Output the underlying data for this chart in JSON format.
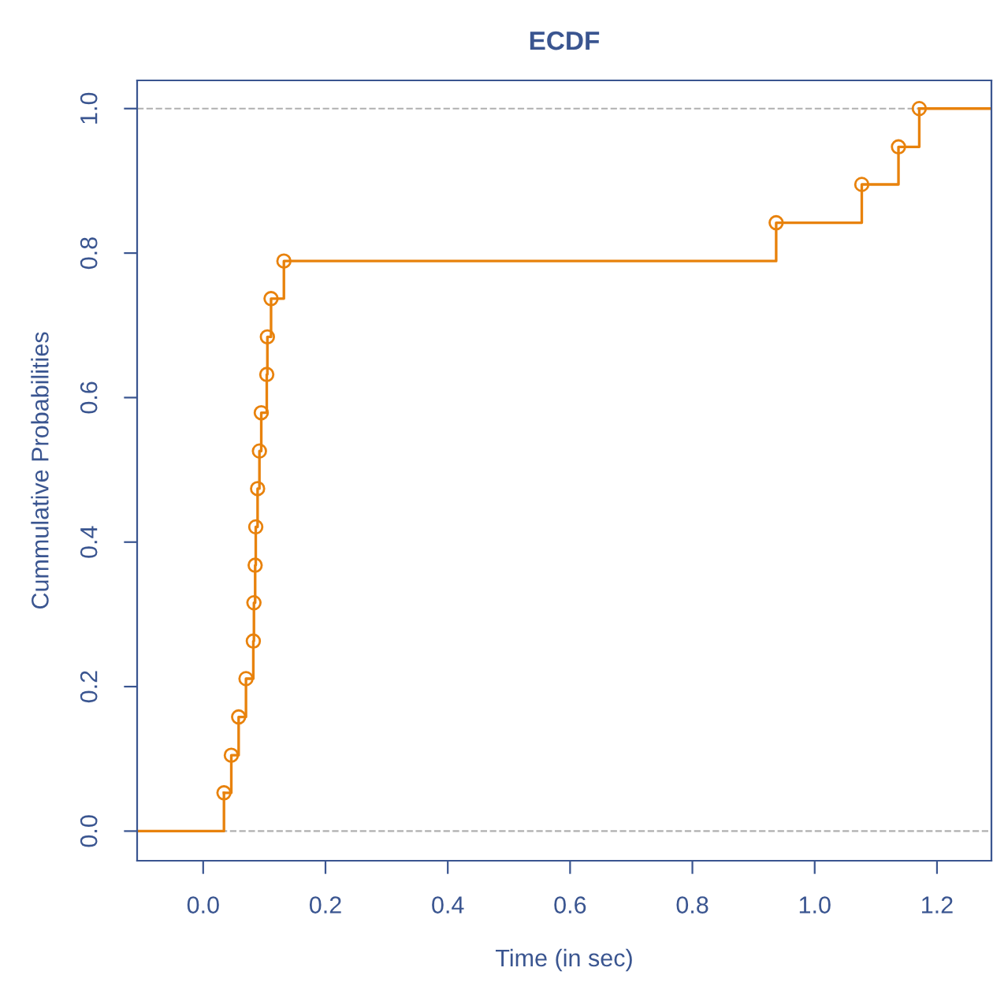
{
  "chart_data": {
    "type": "step",
    "title": "ECDF",
    "xlabel": "Time (in sec)",
    "ylabel": "Cummulative Probabilities",
    "series": [
      {
        "color": "#e8820c",
        "x": [
          0.034,
          0.046,
          0.058,
          0.07,
          0.082,
          0.083,
          0.085,
          0.086,
          0.089,
          0.092,
          0.095,
          0.104,
          0.105,
          0.111,
          0.132,
          0.937,
          1.077,
          1.137,
          1.171
        ],
        "values": [
          0.053,
          0.105,
          0.158,
          0.211,
          0.263,
          0.316,
          0.368,
          0.421,
          0.474,
          0.526,
          0.579,
          0.632,
          0.684,
          0.737,
          0.789,
          0.842,
          0.895,
          0.947,
          1.0
        ]
      },
      {
        "type": "line",
        "marker": "none",
        "color": "#e8820c",
        "x": [
          -0.108,
          0.034,
          0.034
        ],
        "values": [
          0.0,
          0.0,
          0.053
        ]
      },
      {
        "type": "line",
        "marker": "none",
        "color": "#e8820c",
        "x": [
          1.171,
          1.289
        ],
        "values": [
          1.0,
          1.0
        ]
      }
    ],
    "marker": "circle",
    "line_style": "solid",
    "grid": false,
    "legend": false,
    "xlim": [
      -0.108,
      1.289
    ],
    "ylim": [
      -0.041,
      1.039
    ],
    "xticks": [
      {
        "value": 0,
        "label": "0.0"
      },
      0.2,
      0.4,
      0.6,
      0.8,
      {
        "value": 1,
        "label": "1.0"
      },
      1.2
    ],
    "yticks": [
      {
        "value": 0,
        "label": "0.0"
      },
      0.2,
      0.4,
      0.6,
      0.8,
      {
        "value": 1,
        "label": "1.0"
      }
    ],
    "ref_lines": [
      {
        "axis": "y",
        "value": 0.0,
        "color": "#b0b0b0",
        "line_style": "dashed"
      },
      {
        "axis": "y",
        "value": 1.0,
        "color": "#b0b0b0",
        "line_style": "dashed"
      }
    ]
  }
}
